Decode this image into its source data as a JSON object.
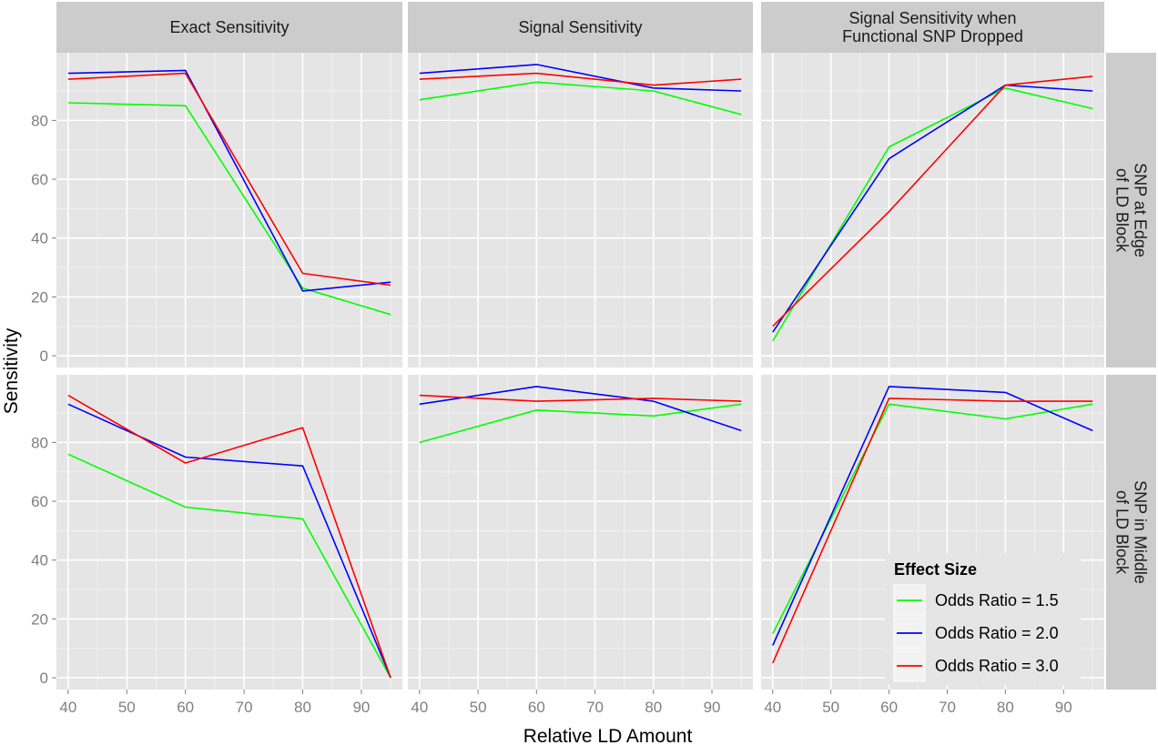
{
  "chart_data": {
    "type": "line",
    "xlabel": "Relative LD Amount",
    "ylabel": "Sensitivity",
    "x": [
      40,
      60,
      80,
      95
    ],
    "x_ticks": [
      40,
      50,
      60,
      70,
      80,
      90
    ],
    "y_ticks": [
      0,
      20,
      40,
      60,
      80
    ],
    "xlim": [
      38,
      97
    ],
    "ylim": [
      -4,
      103
    ],
    "grid": true,
    "legend": {
      "title": "Effect Size",
      "placement": "bottom-right",
      "entries": [
        {
          "label": "Odds Ratio = 1.5",
          "color": "#00ff00"
        },
        {
          "label": "Odds Ratio = 2.0",
          "color": "#0000ff"
        },
        {
          "label": "Odds Ratio = 3.0",
          "color": "#ff0000"
        }
      ]
    },
    "columns": [
      {
        "title": "Exact Sensitivity"
      },
      {
        "title": "Signal Sensitivity"
      },
      {
        "title": "Signal Sensitivity when\nFunctional SNP Dropped"
      }
    ],
    "rows": [
      {
        "title": "SNP at Edge\nof LD Block"
      },
      {
        "title": "SNP in Middle\nof LD Block"
      }
    ],
    "panels": [
      {
        "row": 0,
        "col": 0,
        "series": [
          {
            "name": "Odds Ratio = 1.5",
            "values": [
              86,
              85,
              23,
              14
            ]
          },
          {
            "name": "Odds Ratio = 2.0",
            "values": [
              96,
              97,
              22,
              25
            ]
          },
          {
            "name": "Odds Ratio = 3.0",
            "values": [
              94,
              96,
              28,
              24
            ]
          }
        ]
      },
      {
        "row": 0,
        "col": 1,
        "series": [
          {
            "name": "Odds Ratio = 1.5",
            "values": [
              87,
              93,
              90,
              82
            ]
          },
          {
            "name": "Odds Ratio = 2.0",
            "values": [
              96,
              99,
              91,
              90
            ]
          },
          {
            "name": "Odds Ratio = 3.0",
            "values": [
              94,
              96,
              92,
              94
            ]
          }
        ]
      },
      {
        "row": 0,
        "col": 2,
        "series": [
          {
            "name": "Odds Ratio = 1.5",
            "values": [
              5,
              71,
              91,
              84
            ]
          },
          {
            "name": "Odds Ratio = 2.0",
            "values": [
              8,
              67,
              92,
              90
            ]
          },
          {
            "name": "Odds Ratio = 3.0",
            "values": [
              10,
              49,
              92,
              95
            ]
          }
        ]
      },
      {
        "row": 1,
        "col": 0,
        "series": [
          {
            "name": "Odds Ratio = 1.5",
            "values": [
              76,
              58,
              54,
              0
            ]
          },
          {
            "name": "Odds Ratio = 2.0",
            "values": [
              93,
              75,
              72,
              0
            ]
          },
          {
            "name": "Odds Ratio = 3.0",
            "values": [
              96,
              73,
              85,
              0
            ]
          }
        ]
      },
      {
        "row": 1,
        "col": 1,
        "series": [
          {
            "name": "Odds Ratio = 1.5",
            "values": [
              80,
              91,
              89,
              93
            ]
          },
          {
            "name": "Odds Ratio = 2.0",
            "values": [
              93,
              99,
              94,
              84
            ]
          },
          {
            "name": "Odds Ratio = 3.0",
            "values": [
              96,
              94,
              95,
              94
            ]
          }
        ]
      },
      {
        "row": 1,
        "col": 2,
        "series": [
          {
            "name": "Odds Ratio = 1.5",
            "values": [
              15,
              93,
              88,
              93
            ]
          },
          {
            "name": "Odds Ratio = 2.0",
            "values": [
              11,
              99,
              97,
              84
            ]
          },
          {
            "name": "Odds Ratio = 3.0",
            "values": [
              5,
              95,
              94,
              94
            ]
          }
        ]
      }
    ]
  }
}
